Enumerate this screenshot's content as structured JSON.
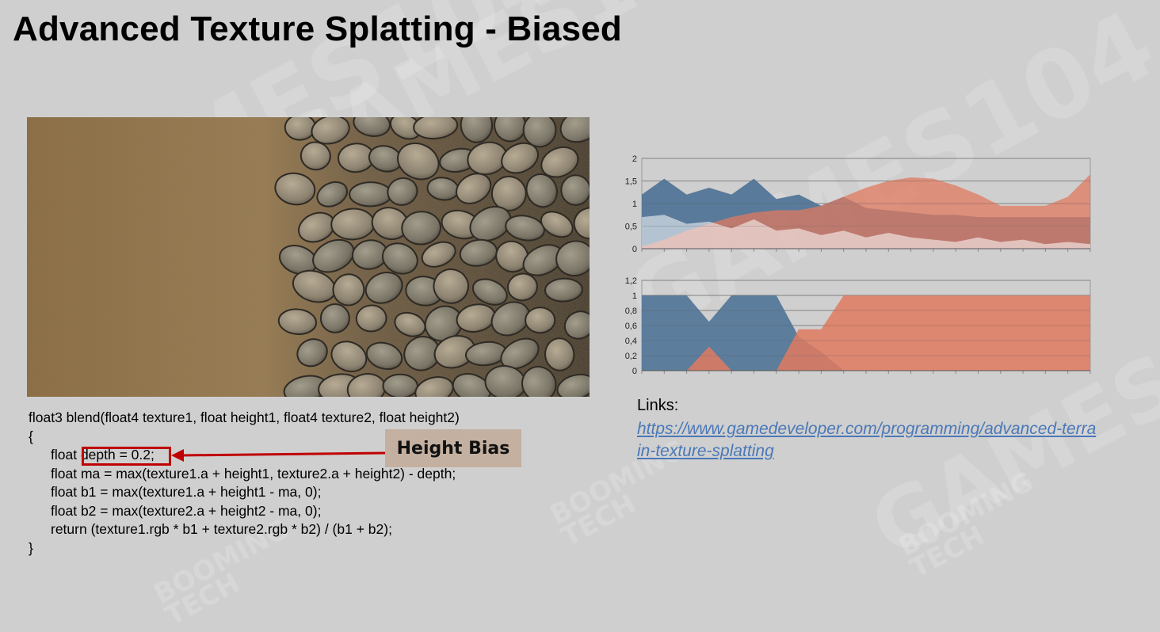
{
  "slide": {
    "title": "Advanced Texture Splatting - Biased"
  },
  "watermarks": {
    "main": "GAMES104",
    "sub_top": "BOOMING",
    "sub_bottom": "TECH"
  },
  "code": {
    "lines": [
      "float3 blend(float4 texture1, float height1, float4 texture2, float height2)",
      "{",
      "float depth = 0.2;",
      "float ma = max(texture1.a + height1, texture2.a + height2) - depth;",
      "float b1 = max(texture1.a + height1 - ma, 0);",
      "float b2 = max(texture2.a + height2 - ma, 0);",
      "return (texture1.rgb * b1 + texture2.rgb * b2) / (b1 + b2);",
      "}"
    ]
  },
  "annotation": {
    "label": "Height Bias",
    "color": "#c00000"
  },
  "links": {
    "heading": "Links:",
    "url": "https://www.gamedeveloper.com/programming/advanced-terrain-texture-splatting"
  },
  "chart_data": [
    {
      "type": "area",
      "x": [
        0,
        1,
        2,
        3,
        4,
        5,
        6,
        7,
        8,
        9,
        10,
        11,
        12,
        13,
        14,
        15,
        16,
        17,
        18,
        19,
        20
      ],
      "ylim": [
        0,
        2
      ],
      "yticks": [
        "0",
        "0,5",
        "1",
        "1,5",
        "2"
      ],
      "grid": true,
      "series": [
        {
          "color": "#4f7396",
          "values": [
            1.2,
            1.55,
            1.2,
            1.35,
            1.2,
            1.55,
            1.1,
            1.2,
            0.95,
            1.15,
            0.9,
            0.85,
            0.8,
            0.75,
            0.75,
            0.7,
            0.7,
            0.7,
            0.7,
            0.7,
            0.7
          ]
        },
        {
          "color": "#e07a5f",
          "values": [
            0.05,
            0.2,
            0.4,
            0.55,
            0.7,
            0.8,
            0.85,
            0.85,
            0.95,
            1.15,
            1.35,
            1.5,
            1.58,
            1.55,
            1.4,
            1.2,
            0.95,
            0.95,
            0.95,
            1.15,
            1.65
          ]
        },
        {
          "color": "#ffffff",
          "values": [
            0.7,
            0.75,
            0.55,
            0.6,
            0.45,
            0.65,
            0.4,
            0.45,
            0.3,
            0.4,
            0.25,
            0.35,
            0.25,
            0.2,
            0.15,
            0.25,
            0.15,
            0.2,
            0.1,
            0.15,
            0.1
          ]
        }
      ]
    },
    {
      "type": "area",
      "x": [
        0,
        1,
        2,
        3,
        4,
        5,
        6,
        7,
        8,
        9,
        10,
        11,
        12,
        13,
        14,
        15,
        16,
        17,
        18,
        19,
        20
      ],
      "ylim": [
        0,
        1.2
      ],
      "yticks": [
        "0",
        "0,2",
        "0,4",
        "0,6",
        "0,8",
        "1",
        "1,2"
      ],
      "grid": true,
      "series": [
        {
          "color": "#4f7396",
          "values": [
            1,
            1,
            1,
            0.65,
            1,
            1,
            1,
            0.45,
            0.25,
            0,
            0,
            0,
            0,
            0,
            0,
            0,
            0,
            0,
            0,
            0,
            0
          ]
        },
        {
          "color": "#e07a5f",
          "values": [
            0,
            0,
            0,
            0.32,
            0,
            0,
            0,
            0.55,
            0.55,
            1,
            1,
            1,
            1,
            1,
            1,
            1,
            1,
            1,
            1,
            1,
            1
          ]
        }
      ]
    }
  ]
}
